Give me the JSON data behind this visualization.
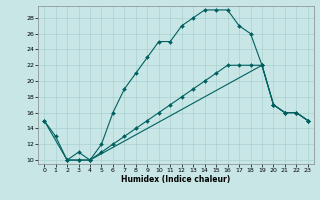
{
  "xlabel": "Humidex (Indice chaleur)",
  "background_color": "#c8e6e6",
  "grid_color": "#aad0d0",
  "line_color": "#006060",
  "xlim": [
    -0.5,
    23.5
  ],
  "ylim": [
    9.5,
    29.5
  ],
  "xticks": [
    0,
    1,
    2,
    3,
    4,
    5,
    6,
    7,
    8,
    9,
    10,
    11,
    12,
    13,
    14,
    15,
    16,
    17,
    18,
    19,
    20,
    21,
    22,
    23
  ],
  "yticks": [
    10,
    12,
    14,
    16,
    18,
    20,
    22,
    24,
    26,
    28
  ],
  "line1_x": [
    0,
    1,
    2,
    3,
    4,
    5,
    6,
    7,
    8,
    9,
    10,
    11,
    12,
    13,
    14,
    15,
    16,
    17,
    18,
    19,
    20,
    21,
    22,
    23
  ],
  "line1_y": [
    15,
    13,
    10,
    11,
    10,
    12,
    16,
    19,
    21,
    23,
    25,
    25,
    27,
    28,
    29,
    29,
    29,
    27,
    26,
    22,
    17,
    16,
    16,
    15
  ],
  "line2_x": [
    0,
    2,
    3,
    4,
    19,
    20,
    21,
    22,
    23
  ],
  "line2_y": [
    15,
    10,
    10,
    10,
    22,
    17,
    16,
    16,
    15
  ],
  "line3_x": [
    2,
    3,
    4,
    5,
    6,
    7,
    8,
    9,
    10,
    11,
    12,
    13,
    14,
    15,
    16,
    17,
    18,
    19,
    20,
    21,
    22,
    23
  ],
  "line3_y": [
    10,
    10,
    10,
    11,
    12,
    13,
    14,
    15,
    16,
    17,
    18,
    19,
    20,
    21,
    22,
    22,
    22,
    22,
    17,
    16,
    16,
    15
  ]
}
